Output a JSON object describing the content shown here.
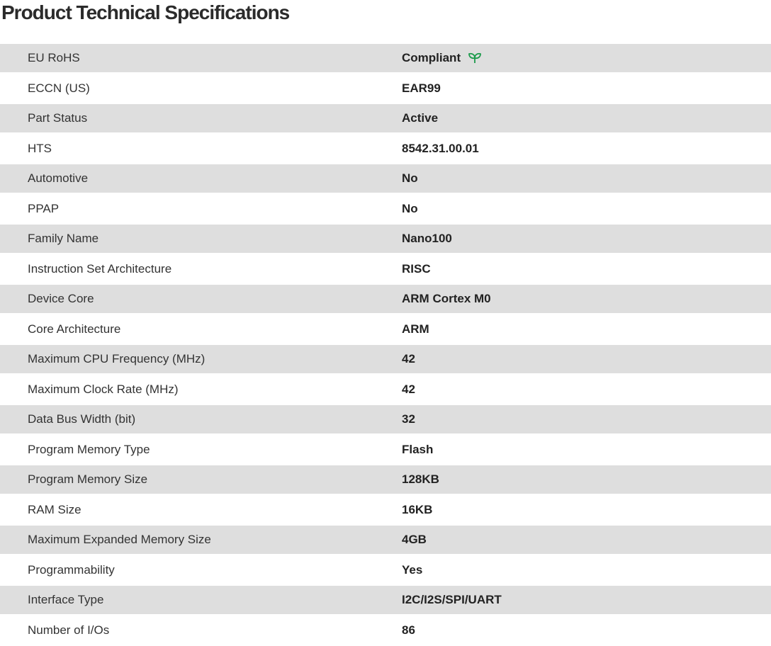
{
  "title": "Product Technical Specifications",
  "accent_color": "#1a9a4a",
  "specs": [
    {
      "label": "EU RoHS",
      "value": "Compliant",
      "icon": "leaf-icon"
    },
    {
      "label": "ECCN (US)",
      "value": "EAR99"
    },
    {
      "label": "Part Status",
      "value": "Active"
    },
    {
      "label": "HTS",
      "value": "8542.31.00.01"
    },
    {
      "label": "Automotive",
      "value": "No"
    },
    {
      "label": "PPAP",
      "value": "No"
    },
    {
      "label": "Family Name",
      "value": "Nano100"
    },
    {
      "label": "Instruction Set Architecture",
      "value": "RISC"
    },
    {
      "label": "Device Core",
      "value": "ARM Cortex M0"
    },
    {
      "label": "Core Architecture",
      "value": "ARM"
    },
    {
      "label": "Maximum CPU Frequency (MHz)",
      "value": "42"
    },
    {
      "label": "Maximum Clock Rate (MHz)",
      "value": "42"
    },
    {
      "label": "Data Bus Width (bit)",
      "value": "32"
    },
    {
      "label": "Program Memory Type",
      "value": "Flash"
    },
    {
      "label": "Program Memory Size",
      "value": "128KB"
    },
    {
      "label": "RAM Size",
      "value": "16KB"
    },
    {
      "label": "Maximum Expanded Memory Size",
      "value": "4GB"
    },
    {
      "label": "Programmability",
      "value": "Yes"
    },
    {
      "label": "Interface Type",
      "value": "I2C/I2S/SPI/UART"
    },
    {
      "label": "Number of I/Os",
      "value": "86"
    }
  ]
}
